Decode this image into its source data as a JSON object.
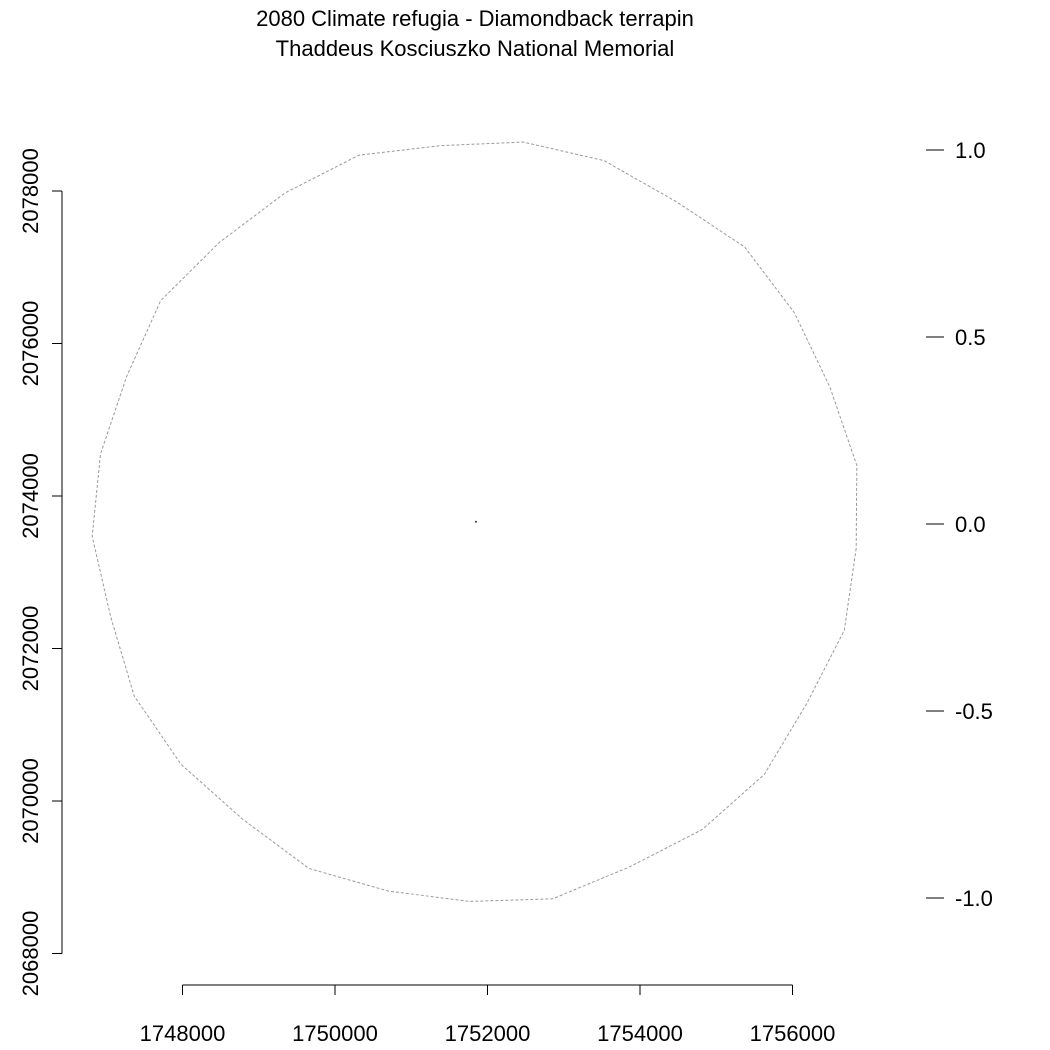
{
  "title": {
    "line1": "2080 Climate refugia - Diamondback terrapin",
    "line2": "Thaddeus Kosciuszko National Memorial"
  },
  "chart_data": {
    "type": "map",
    "x_axis": {
      "ticks": [
        1748000,
        1750000,
        1752000,
        1754000,
        1756000
      ],
      "tick_labels": [
        "1748000",
        "1750000",
        "1752000",
        "1754000",
        "1756000"
      ]
    },
    "y_axis": {
      "ticks": [
        2068000,
        2070000,
        2072000,
        2074000,
        2076000,
        2078000
      ],
      "tick_labels": [
        "2068000",
        "2070000",
        "2072000",
        "2074000",
        "2076000",
        "2078000"
      ]
    },
    "legend_scale": {
      "ticks": [
        1.0,
        0.5,
        0.0,
        -0.5,
        -1.0
      ],
      "tick_labels": [
        "1.0",
        "0.5",
        "0.0",
        "-0.5",
        "-1.0"
      ]
    },
    "boundary": {
      "style": "dashed",
      "color": "#9a9a9a",
      "center": [
        1751848,
        2073663
      ],
      "radius": 5000
    },
    "site_point": {
      "coordinates": [
        1751848,
        2073663
      ],
      "color": "#333333"
    }
  },
  "colors": {
    "boundary": "#9a9a9a",
    "axis": "#000000",
    "background": "#ffffff"
  }
}
